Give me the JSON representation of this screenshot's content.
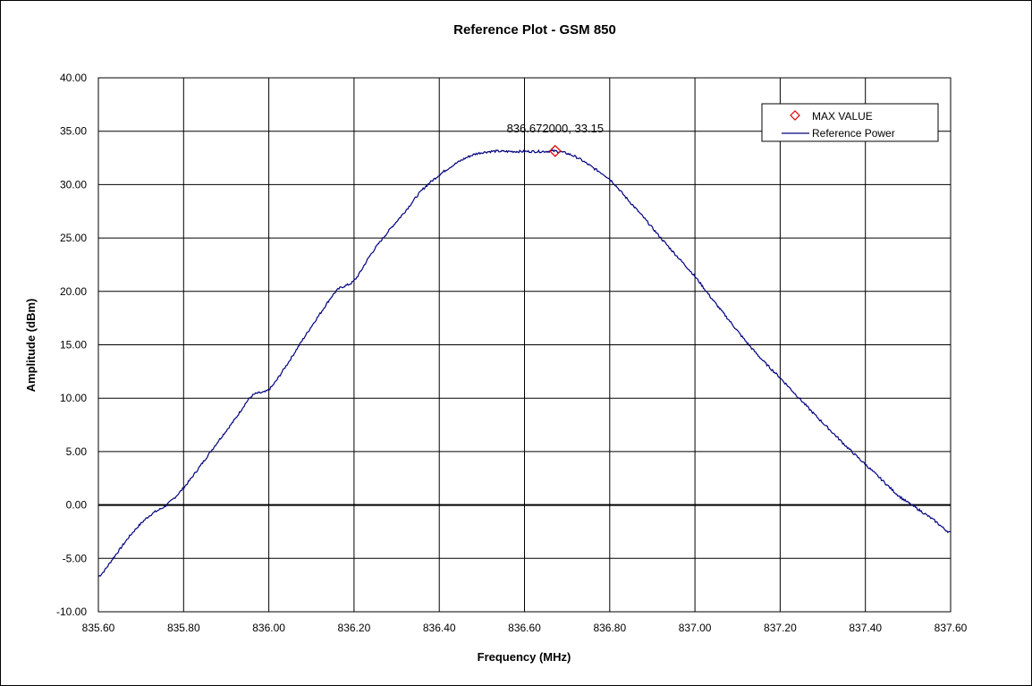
{
  "chart_data": {
    "type": "line",
    "title": "Reference Plot - GSM 850",
    "xlabel": "Frequency (MHz)",
    "ylabel": "Amplitude (dBm)",
    "xlim": [
      835.6,
      837.6
    ],
    "ylim": [
      -10,
      40
    ],
    "x_ticks": [
      "835.60",
      "835.80",
      "836.00",
      "836.20",
      "836.40",
      "836.60",
      "836.80",
      "837.00",
      "837.20",
      "837.40",
      "837.60"
    ],
    "y_ticks": [
      "-10.00",
      "-5.00",
      "0.00",
      "5.00",
      "10.00",
      "15.00",
      "20.00",
      "25.00",
      "30.00",
      "35.00",
      "40.00"
    ],
    "grid": true,
    "legend_position": "top-right",
    "colors": {
      "series": "#000080",
      "marker": "#e00000",
      "grid": "#000000"
    },
    "series": [
      {
        "name": "Reference Power",
        "x": [
          835.6,
          835.64,
          835.68,
          835.72,
          835.76,
          835.8,
          835.84,
          835.88,
          835.92,
          835.96,
          836.0,
          836.04,
          836.08,
          836.12,
          836.16,
          836.2,
          836.24,
          836.28,
          836.32,
          836.36,
          836.4,
          836.44,
          836.48,
          836.52,
          836.56,
          836.6,
          836.64,
          836.68,
          836.72,
          836.76,
          836.8,
          836.84,
          836.88,
          836.92,
          836.96,
          837.0,
          837.04,
          837.08,
          837.12,
          837.16,
          837.2,
          837.24,
          837.28,
          837.32,
          837.36,
          837.4,
          837.44,
          837.48,
          837.52,
          837.56,
          837.6
        ],
        "y": [
          -6.7,
          -4.7,
          -2.6,
          -1.0,
          0.0,
          1.6,
          3.7,
          5.9,
          8.0,
          10.2,
          10.8,
          13.0,
          15.5,
          17.9,
          20.1,
          21.0,
          23.5,
          25.6,
          27.5,
          29.5,
          30.9,
          32.0,
          32.8,
          33.1,
          33.1,
          33.1,
          33.1,
          33.1,
          32.6,
          31.6,
          30.5,
          28.7,
          26.9,
          25.0,
          23.2,
          21.4,
          19.3,
          17.3,
          15.3,
          13.5,
          11.9,
          10.2,
          8.5,
          6.9,
          5.3,
          3.8,
          2.3,
          0.8,
          -0.3,
          -1.4,
          -2.6
        ]
      },
      {
        "name": "MAX VALUE",
        "marker": "diamond",
        "x": [
          836.672
        ],
        "y": [
          33.15
        ],
        "label": "836.672000,  33.15"
      }
    ]
  }
}
